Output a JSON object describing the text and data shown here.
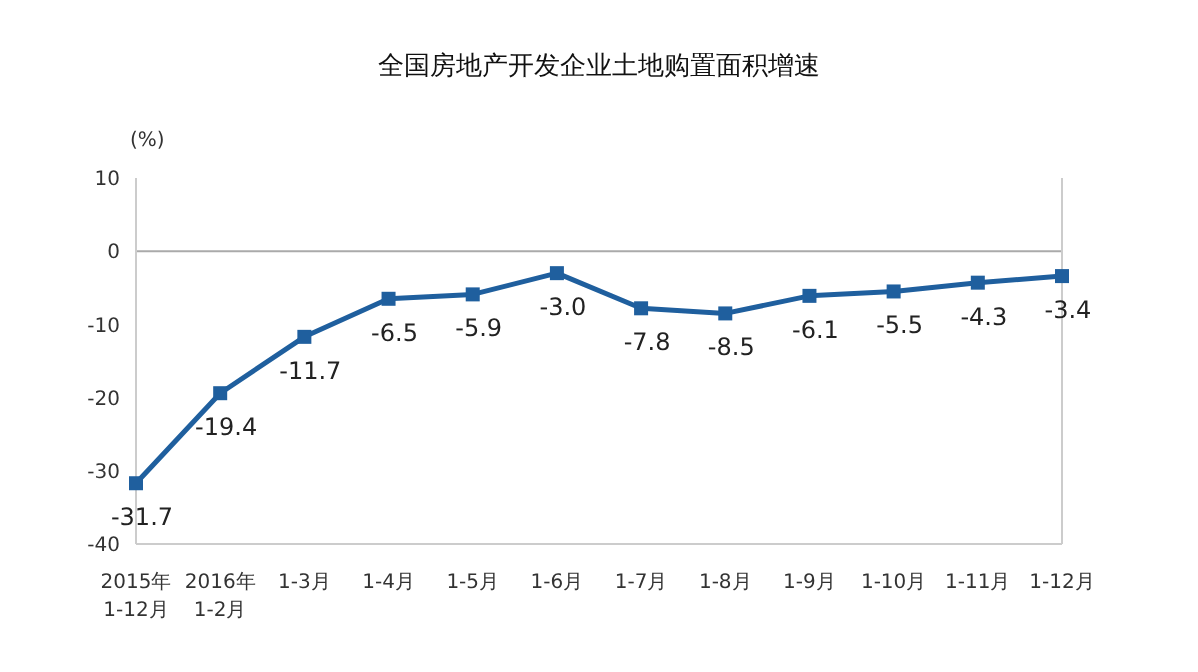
{
  "chart_data": {
    "type": "line",
    "title": "全国房地产开发企业土地购置面积增速",
    "ylabel": "(%)",
    "categories": [
      "2015年\n1-12月",
      "2016年\n1-2月",
      "1-3月",
      "1-4月",
      "1-5月",
      "1-6月",
      "1-7月",
      "1-8月",
      "1-9月",
      "1-10月",
      "1-11月",
      "1-12月"
    ],
    "series": [
      {
        "color": "#1f5f9e",
        "values": [
          -31.7,
          -19.4,
          -11.7,
          -6.5,
          -5.9,
          -3.0,
          -7.8,
          -8.5,
          -6.1,
          -5.5,
          -4.3,
          -3.4
        ],
        "value_labels": [
          "-31.7",
          "-19.4",
          "-11.7",
          "-6.5",
          "-5.9",
          "-3.0",
          "-7.8",
          "-8.5",
          "-6.1",
          "-5.5",
          "-4.3",
          "-3.4"
        ]
      }
    ],
    "ylim": [
      -40,
      10
    ],
    "yticks": [
      -40,
      -30,
      -20,
      -10,
      0,
      10
    ],
    "ref_lines": [
      {
        "axis": "y",
        "value": 0,
        "color": "#aaaaaa"
      }
    ],
    "marker": "square",
    "line_style": "solid",
    "legend": false
  }
}
